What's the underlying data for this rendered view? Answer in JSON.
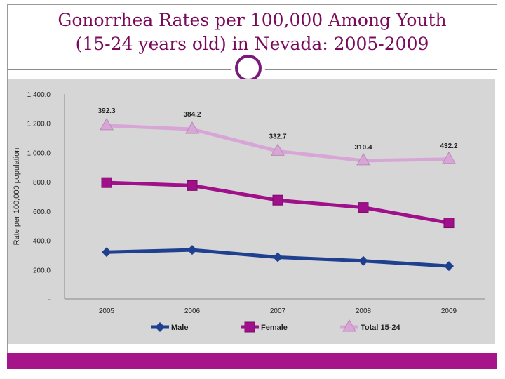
{
  "slide": {
    "title_line1": "Gonorrhea Rates per 100,000 Among Youth",
    "title_line2": "(15-24 years old) in Nevada: 2005-2009"
  },
  "colors": {
    "title": "#7a0a5a",
    "accent_bar": "#a6148a",
    "plot_bg": "#d6d6d6",
    "male": "#1f3f8f",
    "female": "#a0108a",
    "total": "#d8a6d6"
  },
  "chart_data": {
    "type": "line",
    "title": "",
    "xlabel": "",
    "ylabel": "Rate per 100,000 population",
    "categories": [
      "2005",
      "2006",
      "2007",
      "2008",
      "2009"
    ],
    "ylim": [
      0,
      1400
    ],
    "yticks": [
      0,
      200,
      400,
      600,
      800,
      1000,
      1200,
      1400
    ],
    "ytick_labels": [
      "-",
      "200.0",
      "400.0",
      "600.0",
      "800.0",
      "1,000.0",
      "1,200.0",
      "1,400.0"
    ],
    "grid": false,
    "legend_position": "bottom",
    "series": [
      {
        "name": "Male",
        "values": [
          320,
          335,
          285,
          260,
          225
        ],
        "marker": "diamond",
        "color": "#1f3f8f"
      },
      {
        "name": "Female",
        "values": [
          795,
          775,
          675,
          625,
          520
        ],
        "marker": "square",
        "color": "#a0108a"
      },
      {
        "name": "Total 15-24",
        "values": [
          1185,
          1160,
          1010,
          945,
          955
        ],
        "marker": "triangle",
        "color": "#d8a6d6",
        "data_labels": [
          "392.3",
          "384.2",
          "332.7",
          "310.4",
          "432.2"
        ]
      }
    ]
  }
}
